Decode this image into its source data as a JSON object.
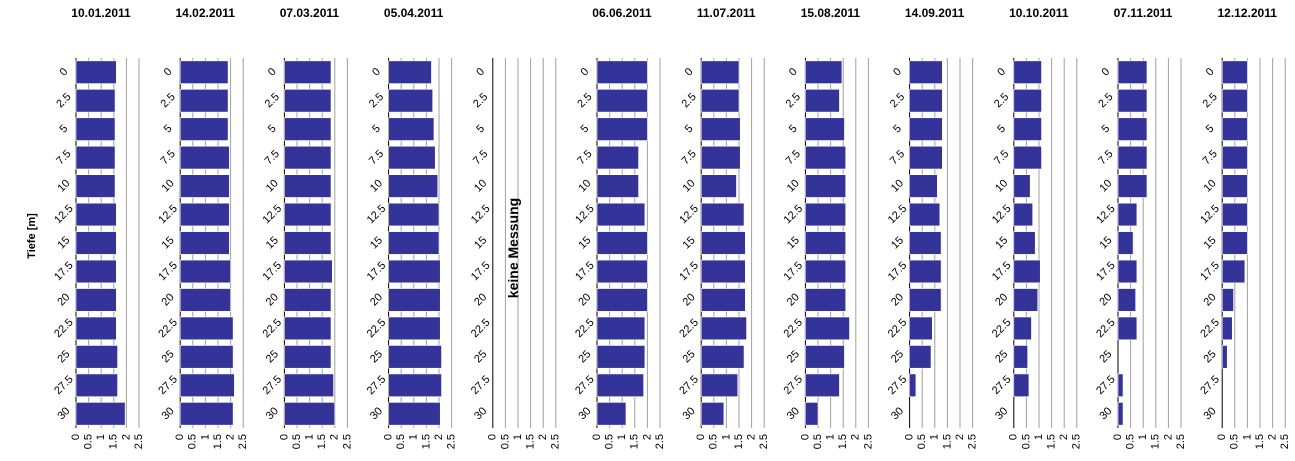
{
  "chart_data": {
    "type": "bar",
    "orientation": "horizontal",
    "ylabel": "Tiefe [m]",
    "depth_categories": [
      "0",
      "2.5",
      "5",
      "7.5",
      "10",
      "12.5",
      "15",
      "17.5",
      "20",
      "22.5",
      "25",
      "27.5",
      "30"
    ],
    "x_ticks": [
      "0",
      "0.5",
      "1",
      "1.5",
      "2",
      "2.5"
    ],
    "xlim": [
      0,
      2.5
    ],
    "grid": true,
    "bar_color": "#333399",
    "panels": [
      {
        "title": "10.01.2011",
        "values": [
          1.6,
          1.55,
          1.55,
          1.55,
          1.55,
          1.6,
          1.6,
          1.6,
          1.6,
          1.6,
          1.65,
          1.65,
          1.95
        ]
      },
      {
        "title": "14.02.2011",
        "values": [
          1.9,
          1.9,
          1.9,
          1.95,
          1.95,
          1.95,
          1.95,
          2.0,
          2.0,
          2.1,
          2.1,
          2.15,
          2.1
        ]
      },
      {
        "title": "07.03.2011",
        "values": [
          1.85,
          1.85,
          1.85,
          1.85,
          1.85,
          1.85,
          1.85,
          1.9,
          1.85,
          1.85,
          1.85,
          1.95,
          2.0
        ]
      },
      {
        "title": "05.04.2011",
        "values": [
          1.7,
          1.75,
          1.8,
          1.85,
          1.95,
          2.0,
          2.0,
          2.05,
          2.05,
          2.05,
          2.1,
          2.1,
          2.05
        ]
      },
      {
        "title": "",
        "values": [],
        "note": "keine Messung"
      },
      {
        "title": "06.06.2011",
        "values": [
          2.0,
          2.0,
          2.0,
          1.65,
          1.65,
          1.9,
          2.0,
          2.0,
          2.0,
          1.9,
          1.9,
          1.85,
          1.15
        ]
      },
      {
        "title": "11.07.2011",
        "values": [
          1.5,
          1.5,
          1.55,
          1.55,
          1.4,
          1.7,
          1.75,
          1.75,
          1.75,
          1.8,
          1.7,
          1.45,
          0.9
        ]
      },
      {
        "title": "15.08.2011",
        "values": [
          1.45,
          1.35,
          1.55,
          1.6,
          1.6,
          1.6,
          1.6,
          1.6,
          1.6,
          1.75,
          1.55,
          1.35,
          0.5
        ]
      },
      {
        "title": "14.09.2011",
        "values": [
          1.3,
          1.3,
          1.3,
          1.3,
          1.1,
          1.2,
          1.25,
          1.25,
          1.25,
          0.9,
          0.85,
          0.25,
          0
        ]
      },
      {
        "title": "10.10.2011",
        "values": [
          1.1,
          1.1,
          1.1,
          1.1,
          0.65,
          0.75,
          0.85,
          1.05,
          0.95,
          0.7,
          0.55,
          0.6,
          0
        ]
      },
      {
        "title": "07.11.2011",
        "values": [
          1.15,
          1.15,
          1.15,
          1.15,
          1.15,
          0.75,
          0.6,
          0.75,
          0.7,
          0.75,
          0,
          0.2,
          0.2
        ]
      },
      {
        "title": "12.12.2011",
        "values": [
          1.0,
          1.0,
          1.0,
          1.0,
          1.0,
          1.0,
          1.0,
          0.9,
          0.45,
          0.4,
          0.2,
          0,
          0
        ]
      }
    ],
    "no_measurement_label": "keine Messung"
  }
}
